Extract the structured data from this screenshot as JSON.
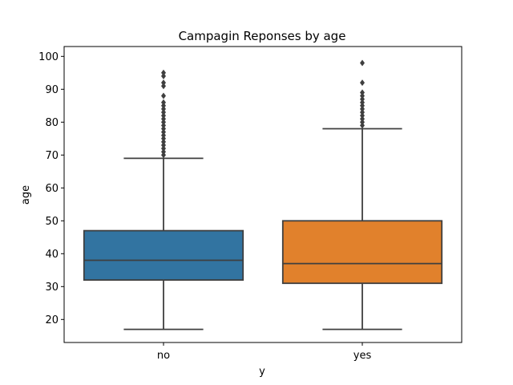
{
  "chart_data": {
    "type": "boxplot",
    "title": "Campagin Reponses by age",
    "xlabel": "y",
    "ylabel": "age",
    "ylim": [
      13,
      103
    ],
    "yticks": [
      20,
      30,
      40,
      50,
      60,
      70,
      80,
      90,
      100
    ],
    "grid": false,
    "categories": [
      "no",
      "yes"
    ],
    "boxes": [
      {
        "category": "no",
        "color": "#3274a1",
        "min": 17,
        "q1": 32,
        "median": 38,
        "q3": 47,
        "max": 69,
        "outliers": [
          70,
          71,
          72,
          73,
          74,
          75,
          76,
          77,
          78,
          79,
          80,
          81,
          82,
          83,
          84,
          85,
          86,
          88,
          91,
          92,
          94,
          95
        ]
      },
      {
        "category": "yes",
        "color": "#e1812c",
        "min": 17,
        "q1": 31,
        "median": 37,
        "q3": 50,
        "max": 78,
        "outliers": [
          79,
          80,
          81,
          82,
          83,
          84,
          85,
          86,
          87,
          88,
          89,
          92,
          98
        ]
      }
    ]
  }
}
